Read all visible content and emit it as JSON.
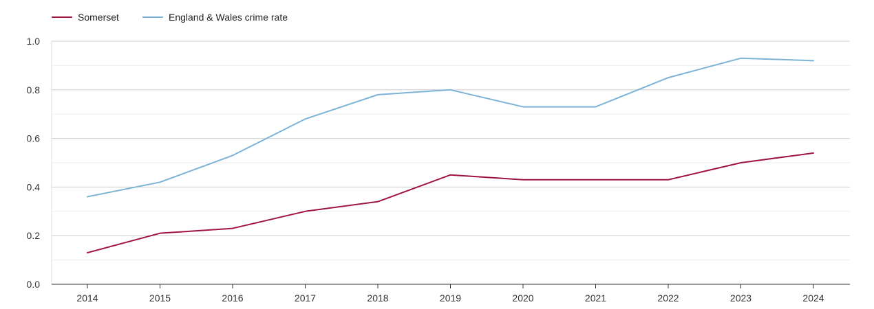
{
  "chart_data": {
    "type": "line",
    "title": "",
    "xlabel": "",
    "ylabel": "",
    "x": [
      "2014",
      "2015",
      "2016",
      "2017",
      "2018",
      "2019",
      "2020",
      "2021",
      "2022",
      "2023",
      "2024"
    ],
    "ylim": [
      0,
      1.0
    ],
    "yticks": [
      "0.0",
      "0.2",
      "0.4",
      "0.6",
      "0.8",
      "1.0"
    ],
    "grid": true,
    "legend_position": "top-left",
    "series": [
      {
        "name": "Somerset",
        "color": "#a0153e",
        "values": [
          0.13,
          0.21,
          0.23,
          0.3,
          0.34,
          0.45,
          0.43,
          0.43,
          0.43,
          0.5,
          0.54
        ]
      },
      {
        "name": "England & Wales crime rate",
        "color": "#7bb3d6",
        "values": [
          0.36,
          0.42,
          0.53,
          0.68,
          0.78,
          0.8,
          0.73,
          0.73,
          0.85,
          0.93,
          0.92
        ]
      }
    ]
  }
}
